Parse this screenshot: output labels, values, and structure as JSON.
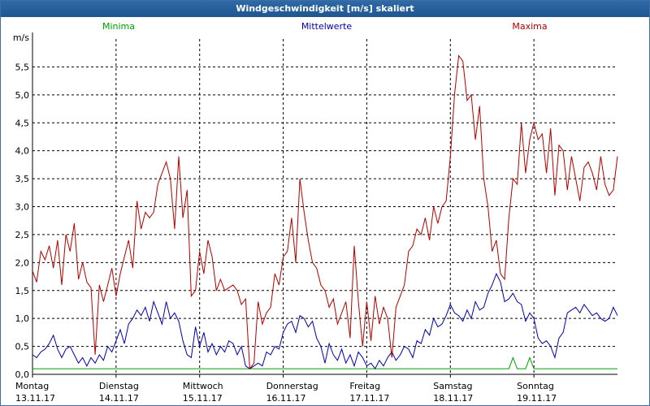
{
  "window": {
    "title": "Windgeschwindigkeit [m/s] skaliert"
  },
  "chart_data": {
    "type": "line",
    "title": "Windgeschwindigkeit [m/s] skaliert",
    "ylabel": "m/s",
    "ylim": [
      0,
      6
    ],
    "grid": true,
    "legend": "top",
    "y_ticks": [
      "0,0",
      "0,5",
      "1,0",
      "1,5",
      "2,0",
      "2,5",
      "3,0",
      "3,5",
      "4,0",
      "4,5",
      "5,0",
      "5,5"
    ],
    "x_ticks": [
      {
        "day": "Montag",
        "date": "13.11.17"
      },
      {
        "day": "Dienstag",
        "date": "14.11.17"
      },
      {
        "day": "Mittwoch",
        "date": "15.11.17"
      },
      {
        "day": "Donnerstag",
        "date": "16.11.17"
      },
      {
        "day": "Freitag",
        "date": "17.11.17"
      },
      {
        "day": "Samstag",
        "date": "18.11.17"
      },
      {
        "day": "Sonntag",
        "date": "19.11.17"
      }
    ],
    "x_range_days": [
      0,
      7
    ],
    "series": [
      {
        "name": "Minima",
        "color": "#00a000",
        "x": [
          0,
          5.7,
          5.75,
          5.8,
          5.9,
          5.95,
          6.0,
          7
        ],
        "y": [
          0.1,
          0.1,
          0.3,
          0.1,
          0.1,
          0.3,
          0.1,
          0.1
        ]
      },
      {
        "name": "Mittelwerte",
        "color": "#0000b0",
        "x": [
          0,
          0.05,
          0.1,
          0.15,
          0.2,
          0.25,
          0.3,
          0.35,
          0.4,
          0.45,
          0.5,
          0.55,
          0.6,
          0.65,
          0.7,
          0.75,
          0.8,
          0.85,
          0.9,
          0.95,
          1.0,
          1.05,
          1.1,
          1.15,
          1.2,
          1.25,
          1.3,
          1.35,
          1.4,
          1.45,
          1.5,
          1.55,
          1.6,
          1.65,
          1.7,
          1.75,
          1.8,
          1.85,
          1.9,
          1.95,
          2.0,
          2.05,
          2.1,
          2.15,
          2.2,
          2.25,
          2.3,
          2.35,
          2.4,
          2.45,
          2.5,
          2.55,
          2.6,
          2.65,
          2.7,
          2.75,
          2.8,
          2.85,
          2.9,
          2.95,
          3.0,
          3.05,
          3.1,
          3.15,
          3.2,
          3.25,
          3.3,
          3.35,
          3.4,
          3.45,
          3.5,
          3.55,
          3.6,
          3.65,
          3.7,
          3.75,
          3.8,
          3.85,
          3.9,
          3.95,
          4.0,
          4.05,
          4.1,
          4.15,
          4.2,
          4.25,
          4.3,
          4.35,
          4.4,
          4.45,
          4.5,
          4.55,
          4.6,
          4.65,
          4.7,
          4.75,
          4.8,
          4.85,
          4.9,
          4.95,
          5.0,
          5.05,
          5.1,
          5.15,
          5.2,
          5.25,
          5.3,
          5.35,
          5.4,
          5.45,
          5.5,
          5.55,
          5.6,
          5.65,
          5.7,
          5.75,
          5.8,
          5.85,
          5.9,
          5.95,
          6.0,
          6.05,
          6.1,
          6.15,
          6.2,
          6.25,
          6.3,
          6.35,
          6.4,
          6.45,
          6.5,
          6.55,
          6.6,
          6.65,
          6.7,
          6.75,
          6.8,
          6.85,
          6.9,
          6.95,
          7.0
        ],
        "y": [
          0.35,
          0.3,
          0.4,
          0.45,
          0.55,
          0.7,
          0.45,
          0.3,
          0.45,
          0.5,
          0.35,
          0.2,
          0.3,
          0.15,
          0.3,
          0.2,
          0.35,
          0.25,
          0.5,
          0.4,
          0.6,
          0.8,
          0.55,
          0.9,
          1.0,
          1.15,
          1.05,
          1.2,
          0.95,
          1.3,
          1.1,
          0.9,
          1.3,
          1.0,
          1.1,
          0.95,
          0.6,
          0.35,
          0.3,
          0.85,
          0.5,
          0.75,
          0.4,
          0.55,
          0.35,
          0.5,
          0.4,
          0.6,
          0.55,
          0.35,
          0.5,
          0.15,
          0.1,
          0.15,
          0.2,
          0.15,
          0.4,
          0.35,
          0.5,
          0.45,
          0.75,
          0.9,
          0.95,
          0.75,
          1.05,
          1.0,
          0.85,
          0.95,
          0.65,
          0.5,
          0.2,
          0.55,
          0.35,
          0.25,
          0.45,
          0.2,
          0.35,
          0.15,
          0.4,
          0.3,
          0.15,
          0.2,
          0.1,
          0.25,
          0.15,
          0.3,
          0.4,
          0.25,
          0.35,
          0.5,
          0.45,
          0.3,
          0.6,
          0.55,
          0.8,
          0.7,
          1.0,
          0.85,
          0.9,
          1.05,
          1.25,
          1.1,
          1.05,
          0.95,
          1.15,
          1.0,
          1.3,
          1.15,
          1.2,
          1.45,
          1.6,
          1.8,
          1.65,
          1.3,
          1.35,
          1.45,
          1.3,
          1.25,
          0.95,
          1.1,
          1.0,
          0.65,
          0.55,
          0.6,
          0.5,
          0.3,
          0.65,
          0.75,
          1.1,
          1.15,
          1.2,
          1.1,
          1.25,
          1.15,
          1.05,
          1.1,
          1.0,
          0.95,
          1.0,
          1.2,
          1.05
        ]
      },
      {
        "name": "Maxima",
        "color": "#b00000",
        "x": [
          0,
          0.05,
          0.1,
          0.15,
          0.2,
          0.25,
          0.3,
          0.35,
          0.4,
          0.45,
          0.5,
          0.55,
          0.6,
          0.65,
          0.7,
          0.75,
          0.8,
          0.85,
          0.9,
          0.95,
          1.0,
          1.05,
          1.1,
          1.15,
          1.2,
          1.25,
          1.3,
          1.35,
          1.4,
          1.45,
          1.5,
          1.55,
          1.6,
          1.65,
          1.7,
          1.75,
          1.8,
          1.85,
          1.9,
          1.95,
          2.0,
          2.05,
          2.1,
          2.15,
          2.2,
          2.25,
          2.3,
          2.35,
          2.4,
          2.45,
          2.5,
          2.55,
          2.6,
          2.65,
          2.7,
          2.75,
          2.8,
          2.85,
          2.9,
          2.95,
          3.0,
          3.05,
          3.1,
          3.15,
          3.2,
          3.25,
          3.3,
          3.35,
          3.4,
          3.45,
          3.5,
          3.55,
          3.6,
          3.65,
          3.7,
          3.75,
          3.8,
          3.85,
          3.9,
          3.95,
          4.0,
          4.05,
          4.1,
          4.15,
          4.2,
          4.25,
          4.3,
          4.35,
          4.4,
          4.45,
          4.5,
          4.55,
          4.6,
          4.65,
          4.7,
          4.75,
          4.8,
          4.85,
          4.9,
          4.95,
          5.0,
          5.05,
          5.1,
          5.15,
          5.2,
          5.25,
          5.3,
          5.35,
          5.4,
          5.45,
          5.5,
          5.55,
          5.6,
          5.65,
          5.7,
          5.75,
          5.8,
          5.85,
          5.9,
          5.95,
          6.0,
          6.05,
          6.1,
          6.15,
          6.2,
          6.25,
          6.3,
          6.35,
          6.4,
          6.45,
          6.5,
          6.55,
          6.6,
          6.65,
          6.7,
          6.75,
          6.8,
          6.85,
          6.9,
          6.95,
          7.0
        ],
        "y": [
          1.85,
          1.65,
          2.2,
          2.05,
          2.3,
          1.9,
          2.4,
          1.6,
          2.5,
          2.2,
          2.7,
          1.7,
          2.0,
          1.65,
          1.55,
          0.35,
          1.6,
          1.3,
          1.6,
          1.9,
          1.4,
          1.8,
          2.1,
          2.4,
          1.9,
          3.1,
          2.6,
          2.9,
          2.8,
          2.9,
          3.4,
          3.6,
          3.8,
          3.5,
          2.6,
          3.9,
          2.8,
          3.3,
          1.4,
          1.5,
          2.2,
          1.8,
          2.4,
          2.1,
          1.5,
          1.7,
          1.5,
          1.55,
          1.6,
          1.5,
          1.25,
          1.35,
          0.1,
          0.2,
          1.3,
          0.9,
          1.1,
          1.2,
          1.8,
          1.6,
          2.1,
          2.2,
          2.8,
          2.0,
          3.5,
          2.9,
          2.4,
          2.0,
          1.9,
          1.6,
          1.5,
          1.2,
          1.35,
          0.9,
          1.1,
          1.3,
          0.65,
          2.3,
          1.3,
          0.5,
          1.3,
          0.6,
          1.4,
          0.9,
          1.2,
          1.0,
          0.3,
          1.2,
          1.4,
          1.6,
          2.2,
          2.3,
          2.6,
          2.5,
          2.8,
          2.4,
          3.0,
          2.7,
          3.0,
          3.1,
          3.9,
          5.0,
          5.7,
          5.6,
          4.9,
          5.0,
          4.2,
          4.8,
          3.5,
          3.0,
          2.2,
          2.4,
          1.8,
          1.7,
          2.8,
          3.5,
          3.4,
          4.5,
          3.6,
          4.2,
          4.5,
          4.2,
          4.3,
          3.6,
          4.4,
          3.2,
          4.1,
          4.0,
          3.3,
          3.9,
          3.5,
          3.1,
          3.7,
          3.8,
          3.6,
          3.3,
          3.9,
          3.4,
          3.2,
          3.3,
          3.9
        ]
      }
    ]
  }
}
